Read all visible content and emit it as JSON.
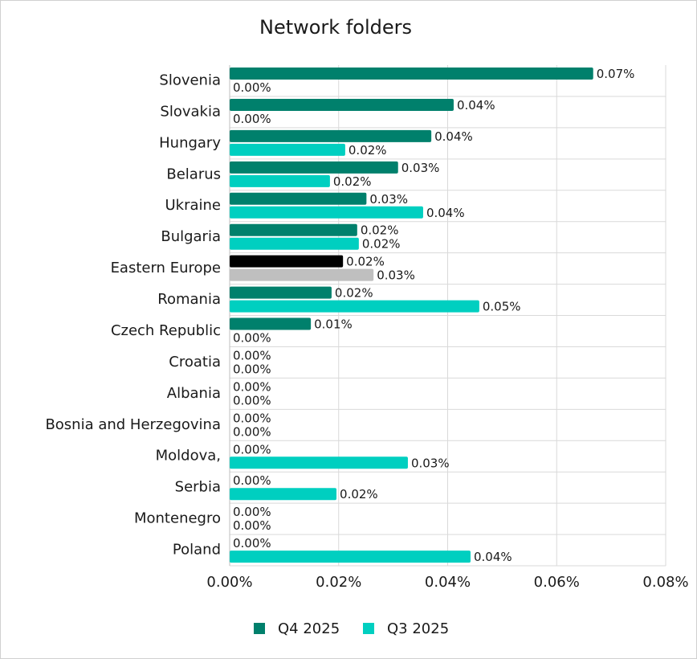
{
  "chart_data": {
    "type": "hbar",
    "title": "Network folders",
    "categories": [
      "Slovenia",
      "Slovakia",
      "Hungary",
      "Belarus",
      "Ukraine",
      "Bulgaria",
      "Eastern Europe",
      "Romania",
      "Czech Republic",
      "Croatia",
      "Albania",
      "Bosnia and Herzegovina",
      "Moldova,",
      "Serbia",
      "Montenegro",
      "Poland"
    ],
    "series": [
      {
        "name": "Q4 2025",
        "color": "#00806c",
        "highlight": {
          "index": 6,
          "color": "#000000"
        },
        "values": [
          0.0667,
          0.0411,
          0.037,
          0.0309,
          0.0251,
          0.0234,
          0.0208,
          0.0187,
          0.0149,
          0,
          0,
          0,
          0,
          0,
          0,
          0
        ],
        "value_labels": [
          "0.07%",
          "0.04%",
          "0.04%",
          "0.03%",
          "0.03%",
          "0.02%",
          "0.02%",
          "0.02%",
          "0.01%",
          "0.00%",
          "0.00%",
          "0.00%",
          "0.00%",
          "0.00%",
          "0.00%",
          "0.00%"
        ]
      },
      {
        "name": "Q3 2025",
        "color": "#00cfc0",
        "highlight": {
          "index": 6,
          "color": "#bfbfbf"
        },
        "values": [
          0,
          0,
          0.0212,
          0.0184,
          0.0355,
          0.0237,
          0.0264,
          0.0458,
          0,
          0,
          0,
          0,
          0.0327,
          0.0196,
          0,
          0.0442
        ],
        "value_labels": [
          "0.00%",
          "0.00%",
          "0.02%",
          "0.02%",
          "0.04%",
          "0.02%",
          "0.03%",
          "0.05%",
          "0.00%",
          "0.00%",
          "0.00%",
          "0.00%",
          "0.03%",
          "0.02%",
          "0.00%",
          "0.04%"
        ]
      }
    ],
    "xlim": [
      0,
      0.08
    ],
    "xticks": [
      {
        "value": 0,
        "label": "0.00%"
      },
      {
        "value": 0.02,
        "label": "0.02%"
      },
      {
        "value": 0.04,
        "label": "0.04%"
      },
      {
        "value": 0.06,
        "label": "0.06%"
      },
      {
        "value": 0.08,
        "label": "0.08%"
      }
    ],
    "grid": true
  }
}
